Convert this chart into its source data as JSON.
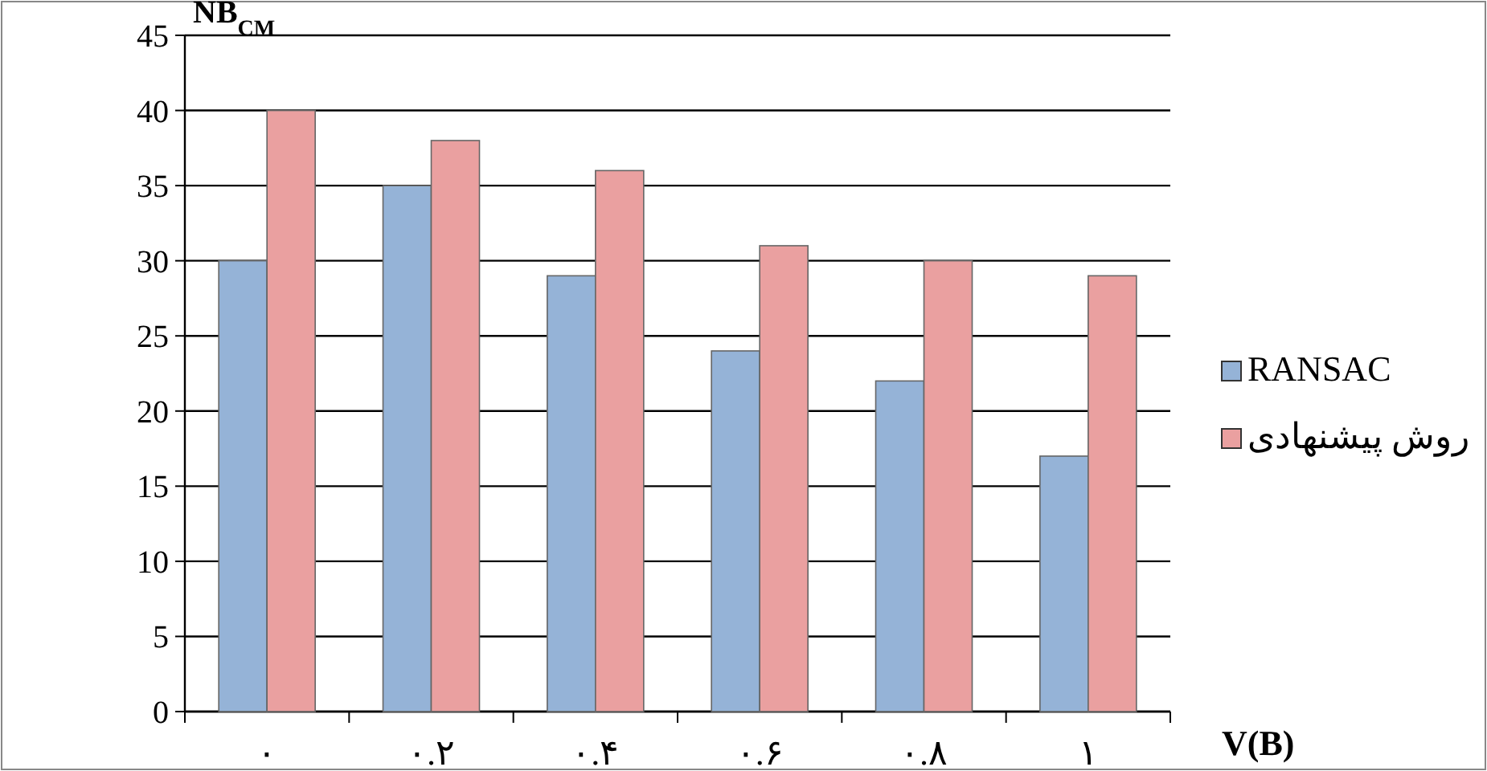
{
  "chart_data": {
    "type": "bar",
    "ylabel": "NB$_{CM}$",
    "xlabel": "V(B)",
    "categories": [
      "۰",
      "۰.۲",
      "۰.۴",
      "۰.۶",
      "۰.۸",
      "۱"
    ],
    "series": [
      {
        "name": "RANSAC",
        "color": "#95b3d7",
        "values": [
          30,
          35,
          29,
          24,
          22,
          17
        ]
      },
      {
        "name": "روش پیشنهادی",
        "color": "#eaa0a0",
        "values": [
          40,
          38,
          36,
          31,
          30,
          29
        ]
      }
    ],
    "ylim": [
      0,
      45
    ],
    "yticks": [
      0,
      5,
      10,
      15,
      20,
      25,
      30,
      35,
      40,
      45
    ],
    "grid": "y",
    "legend": "right"
  }
}
